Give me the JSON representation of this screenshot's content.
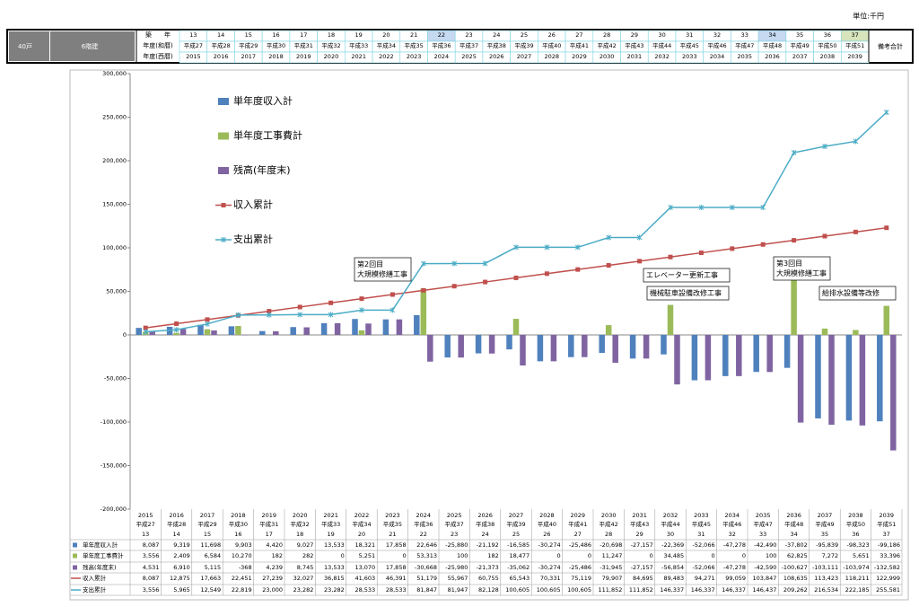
{
  "header": {
    "unit": "単位:千円",
    "households": "40戸",
    "floors": "6階建",
    "row_labels": [
      "築　　年",
      "年度(和暦)",
      "年度(西暦)"
    ],
    "remarks": "備考合計"
  },
  "chart_data": {
    "type": "combo",
    "categories": [
      "2015",
      "2016",
      "2017",
      "2018",
      "2019",
      "2020",
      "2021",
      "2022",
      "2023",
      "2024",
      "2025",
      "2026",
      "2027",
      "2028",
      "2029",
      "2030",
      "2031",
      "2032",
      "2033",
      "2034",
      "2035",
      "2036",
      "2037",
      "2038",
      "2039"
    ],
    "wareki": [
      "平成27",
      "平成28",
      "平成29",
      "平成30",
      "平成31",
      "平成32",
      "平成33",
      "平成34",
      "平成35",
      "平成36",
      "平成37",
      "平成38",
      "平成39",
      "平成40",
      "平成41",
      "平成42",
      "平成43",
      "平成44",
      "平成45",
      "平成46",
      "平成47",
      "平成48",
      "平成49",
      "平成50",
      "平成51"
    ],
    "ages": [
      "13",
      "14",
      "15",
      "16",
      "17",
      "18",
      "19",
      "20",
      "21",
      "22",
      "23",
      "24",
      "25",
      "26",
      "27",
      "28",
      "29",
      "30",
      "31",
      "32",
      "33",
      "34",
      "35",
      "36",
      "37"
    ],
    "ylim": [
      -200000,
      300000
    ],
    "yticks": [
      {
        "value": 300000,
        "label": "300,000"
      },
      {
        "value": 250000,
        "label": "250,000"
      },
      {
        "value": 200000,
        "label": "200,000"
      },
      {
        "value": 150000,
        "label": "150,000"
      },
      {
        "value": 100000,
        "label": "100,000"
      },
      {
        "value": 50000,
        "label": "50,000"
      },
      0,
      {
        "value": -50000,
        "label": "-50,000"
      },
      {
        "value": -100000,
        "label": "-100,000"
      },
      {
        "value": -150000,
        "label": "-150,000"
      },
      {
        "value": -200000,
        "label": "-200,000"
      }
    ],
    "series": [
      {
        "name": "単年度収入計",
        "type": "bar",
        "color": "#4f81bd",
        "values": [
          8087,
          9319,
          11698,
          9903,
          4420,
          9027,
          13533,
          18321,
          17858,
          22646,
          -25880,
          -21192,
          -16585,
          -30274,
          -25486,
          -20698,
          -27157,
          -22369,
          -52066,
          -47278,
          -42490,
          -37802,
          -95839,
          -98323,
          -99186
        ],
        "value_labels": [
          "8,087",
          "9,319",
          "11,698",
          "9,903",
          "4,420",
          "9,027",
          "13,533",
          "18,321",
          "17,858",
          "22,646",
          "-25,880",
          "-21,192",
          "-16,585",
          "-30,274",
          "-25,486",
          "-20,698",
          "-27,157",
          "-22,369",
          "-52,066",
          "-47,278",
          "-42,490",
          "-37,802",
          "-95,839",
          "-98,323",
          "-99,186"
        ]
      },
      {
        "name": "単年度工事費計",
        "type": "bar",
        "color": "#9bbb59",
        "values": [
          3556,
          2409,
          6584,
          10270,
          182,
          282,
          0,
          5251,
          0,
          53313,
          100,
          182,
          18477,
          0,
          0,
          11247,
          0,
          34485,
          0,
          0,
          100,
          62825,
          7272,
          5651,
          33396
        ],
        "value_labels": [
          "3,556",
          "2,409",
          "6,584",
          "10,270",
          "182",
          "282",
          "0",
          "5,251",
          "0",
          "53,313",
          "100",
          "182",
          "18,477",
          "0",
          "0",
          "11,247",
          "0",
          "34,485",
          "0",
          "0",
          "100",
          "62,825",
          "7,272",
          "5,651",
          "33,396"
        ]
      },
      {
        "name": "残高(年度末)",
        "type": "bar",
        "color": "#8064a2",
        "values": [
          4531,
          6910,
          5115,
          -368,
          4239,
          8745,
          13533,
          13070,
          17858,
          -30668,
          -25980,
          -21373,
          -35062,
          -30274,
          -25486,
          -31945,
          -27157,
          -56854,
          -52066,
          -47278,
          -42590,
          -100627,
          -103111,
          -103974,
          -132582
        ],
        "value_labels": [
          "4,531",
          "6,910",
          "5,115",
          "-368",
          "4,239",
          "8,745",
          "13,533",
          "13,070",
          "17,858",
          "-30,668",
          "-25,980",
          "-21,373",
          "-35,062",
          "-30,274",
          "-25,486",
          "-31,945",
          "-27,157",
          "-56,854",
          "-52,066",
          "-47,278",
          "-42,590",
          "-100,627",
          "-103,111",
          "-103,974",
          "-132,582"
        ]
      },
      {
        "name": "収入累計",
        "type": "line",
        "marker": "square",
        "color": "#c0504d",
        "values": [
          8087,
          12875,
          17663,
          22451,
          27239,
          32027,
          36815,
          41603,
          46391,
          51179,
          55967,
          60755,
          65543,
          70331,
          75119,
          79907,
          84695,
          89483,
          94271,
          99059,
          103847,
          108635,
          113423,
          118211,
          122999
        ],
        "value_labels": [
          "8,087",
          "12,875",
          "17,663",
          "22,451",
          "27,239",
          "32,027",
          "36,815",
          "41,603",
          "46,391",
          "51,179",
          "55,967",
          "60,755",
          "65,543",
          "70,331",
          "75,119",
          "79,907",
          "84,695",
          "89,483",
          "94,271",
          "99,059",
          "103,847",
          "108,635",
          "113,423",
          "118,211",
          "122,999"
        ]
      },
      {
        "name": "支出累計",
        "type": "line",
        "marker": "cross",
        "color": "#4bacc6",
        "values": [
          3556,
          5965,
          12549,
          22819,
          23000,
          23282,
          23282,
          28533,
          28533,
          81847,
          81947,
          82128,
          100605,
          100605,
          100605,
          111852,
          111852,
          146337,
          146337,
          146337,
          146437,
          209262,
          216534,
          222185,
          255581
        ],
        "value_labels": [
          "3,556",
          "5,965",
          "12,549",
          "22,819",
          "23,000",
          "23,282",
          "23,282",
          "28,533",
          "28,533",
          "81,847",
          "81,947",
          "82,128",
          "100,605",
          "100,605",
          "100,605",
          "111,852",
          "111,852",
          "146,337",
          "146,337",
          "146,337",
          "146,437",
          "209,262",
          "216,534",
          "222,185",
          "255,581"
        ]
      }
    ],
    "annotations": [
      [
        "第2回目",
        "大規模修繕工事"
      ],
      [
        "エレベーター更新工事"
      ],
      [
        "機械駐車設備改修工事"
      ],
      [
        "第3回目",
        "大規模修繕工事"
      ],
      [
        "給排水設備等改修"
      ]
    ],
    "legend": "upper left"
  }
}
